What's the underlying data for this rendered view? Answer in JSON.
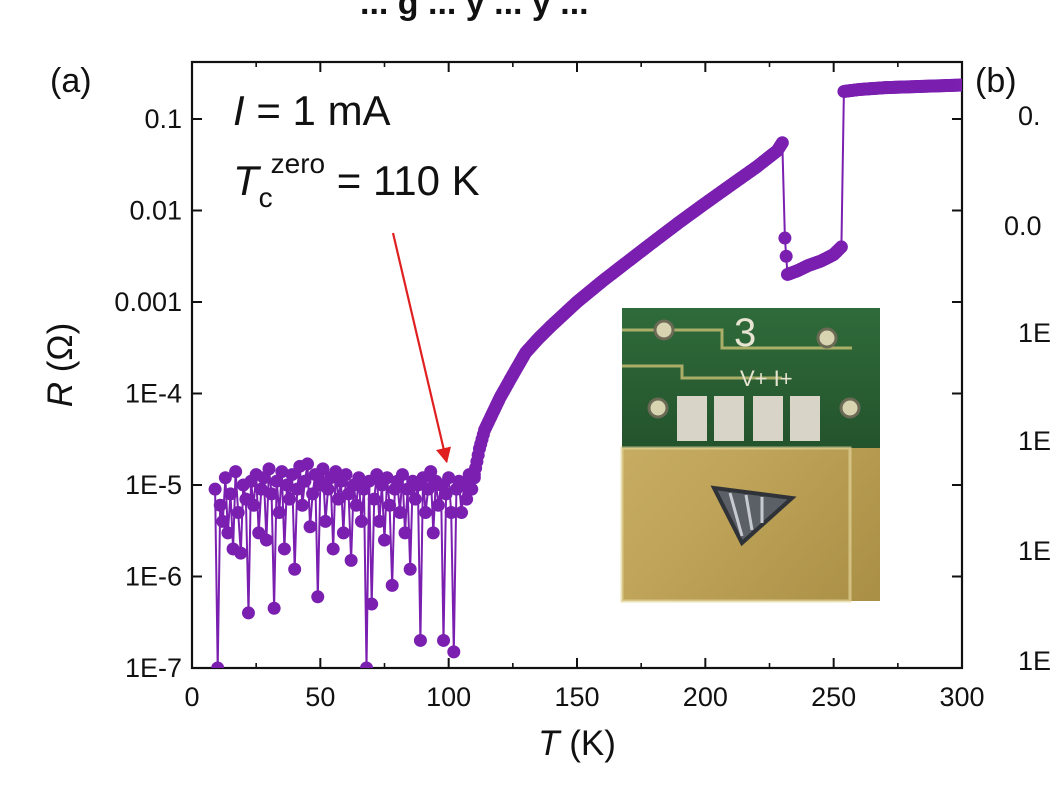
{
  "header_fragment": "... g ... y ... y ...",
  "chart_data": {
    "type": "scatter",
    "panel_label": "(a)",
    "xlabel": {
      "symbol": "T",
      "unit": "(K)"
    },
    "ylabel": {
      "symbol": "R",
      "unit": "(Ω)"
    },
    "xlim": [
      0,
      300
    ],
    "ylim": [
      1e-07,
      0.4
    ],
    "yscale": "log",
    "x_ticks": [
      {
        "value": 0,
        "label": "0"
      },
      {
        "value": 50,
        "label": "50"
      },
      {
        "value": 100,
        "label": "100"
      },
      {
        "value": 150,
        "label": "150"
      },
      {
        "value": 200,
        "label": "200"
      },
      {
        "value": 250,
        "label": "250"
      },
      {
        "value": 300,
        "label": "300"
      }
    ],
    "y_ticks": [
      {
        "value": 1e-07,
        "label": "1E-7"
      },
      {
        "value": 1e-06,
        "label": "1E-6"
      },
      {
        "value": 1e-05,
        "label": "1E-5"
      },
      {
        "value": 0.0001,
        "label": "1E-4"
      },
      {
        "value": 0.001,
        "label": "0.001"
      },
      {
        "value": 0.01,
        "label": "0.01"
      },
      {
        "value": 0.1,
        "label": "0.1"
      }
    ],
    "annotations": {
      "current": {
        "symbol": "I",
        "rest": " = 1 mA"
      },
      "tc": {
        "symbol": "T",
        "sub": "c",
        "sup": "zero",
        "rest": " = 110 K"
      },
      "arrow_points_to": {
        "x": 100,
        "y": 1.2e-05
      }
    },
    "series": [
      {
        "color": "#7a1fb0",
        "marker": "circle",
        "noise_points": [
          [
            9,
            9e-06
          ],
          [
            10,
            1e-07
          ],
          [
            11,
            6e-06
          ],
          [
            12,
            4e-06
          ],
          [
            13,
            1.2e-05
          ],
          [
            14,
            3e-06
          ],
          [
            15,
            8e-06
          ],
          [
            16,
            2e-06
          ],
          [
            17,
            1.4e-05
          ],
          [
            18,
            5e-06
          ],
          [
            19,
            1.8e-06
          ],
          [
            20,
            1e-05
          ],
          [
            21,
            7e-06
          ],
          [
            22,
            4e-07
          ],
          [
            23,
            1.1e-05
          ],
          [
            24,
            6e-06
          ],
          [
            25,
            1.3e-05
          ],
          [
            26,
            3e-06
          ],
          [
            27,
            9e-06
          ],
          [
            28,
            1.2e-05
          ],
          [
            29,
            2.5e-06
          ],
          [
            30,
            1.5e-05
          ],
          [
            31,
            8e-06
          ],
          [
            32,
            4.5e-07
          ],
          [
            33,
            1.1e-05
          ],
          [
            34,
            5e-06
          ],
          [
            35,
            1.4e-05
          ],
          [
            36,
            2e-06
          ],
          [
            37,
            1e-05
          ],
          [
            38,
            7e-06
          ],
          [
            39,
            1.3e-05
          ],
          [
            40,
            1.2e-06
          ],
          [
            41,
            9e-06
          ],
          [
            42,
            1.6e-05
          ],
          [
            43,
            6e-06
          ],
          [
            44,
            1.1e-05
          ],
          [
            45,
            1.7e-05
          ],
          [
            46,
            3.5e-06
          ],
          [
            47,
            8e-06
          ],
          [
            48,
            1.3e-05
          ],
          [
            49,
            6e-07
          ],
          [
            50,
            1e-05
          ],
          [
            51,
            1.5e-05
          ],
          [
            52,
            4e-06
          ],
          [
            53,
            9e-06
          ],
          [
            54,
            1.2e-05
          ],
          [
            55,
            2e-06
          ],
          [
            56,
            1.4e-05
          ],
          [
            57,
            7e-06
          ],
          [
            58,
            1.1e-05
          ],
          [
            59,
            3e-06
          ],
          [
            60,
            1.3e-05
          ],
          [
            61,
            8e-06
          ],
          [
            62,
            1.5e-06
          ],
          [
            63,
            1e-05
          ],
          [
            64,
            6e-06
          ],
          [
            65,
            1.2e-05
          ],
          [
            66,
            4e-06
          ],
          [
            67,
            9e-06
          ],
          [
            68,
            1e-07
          ],
          [
            69,
            1.1e-05
          ],
          [
            70,
            5e-07
          ],
          [
            71,
            7e-06
          ],
          [
            72,
            1.3e-05
          ],
          [
            73,
            4e-06
          ],
          [
            74,
            1e-05
          ],
          [
            75,
            2.5e-06
          ],
          [
            76,
            1.2e-05
          ],
          [
            77,
            6e-06
          ],
          [
            78,
            8e-07
          ],
          [
            79,
            9e-06
          ],
          [
            80,
            1.1e-05
          ],
          [
            81,
            5e-06
          ],
          [
            82,
            1.3e-05
          ],
          [
            83,
            3e-06
          ],
          [
            84,
            9e-06
          ],
          [
            85,
            1.2e-06
          ],
          [
            86,
            1.1e-05
          ],
          [
            87,
            7e-06
          ],
          [
            88,
            1e-05
          ],
          [
            89,
            2e-07
          ],
          [
            90,
            1.2e-05
          ],
          [
            91,
            5e-06
          ],
          [
            92,
            9e-06
          ],
          [
            93,
            1.4e-05
          ],
          [
            94,
            3e-06
          ],
          [
            95,
            1.1e-05
          ],
          [
            96,
            6e-06
          ],
          [
            97,
            1e-05
          ],
          [
            98,
            2e-07
          ],
          [
            99,
            8e-06
          ],
          [
            100,
            1.2e-05
          ],
          [
            101,
            5e-06
          ],
          [
            102,
            1.5e-07
          ],
          [
            103,
            9e-06
          ],
          [
            104,
            1.1e-05
          ],
          [
            105,
            5e-06
          ],
          [
            106,
            1e-05
          ],
          [
            107,
            7e-06
          ],
          [
            108,
            1.3e-05
          ],
          [
            109,
            9e-06
          ],
          [
            110,
            1.2e-05
          ]
        ],
        "curve_points": [
          [
            110,
            1.3e-05
          ],
          [
            112,
            2.5e-05
          ],
          [
            114,
            4e-05
          ],
          [
            117,
            6e-05
          ],
          [
            120,
            9e-05
          ],
          [
            125,
            0.00016
          ],
          [
            130,
            0.00028
          ],
          [
            135,
            0.0004
          ],
          [
            140,
            0.00055
          ],
          [
            150,
            0.001
          ],
          [
            160,
            0.0017
          ],
          [
            170,
            0.0028
          ],
          [
            180,
            0.0046
          ],
          [
            190,
            0.0075
          ],
          [
            200,
            0.012
          ],
          [
            210,
            0.019
          ],
          [
            220,
            0.03
          ],
          [
            228,
            0.045
          ],
          [
            230,
            0.055
          ],
          [
            231,
            0.005
          ],
          [
            232,
            0.002
          ],
          [
            236,
            0.0022
          ],
          [
            240,
            0.0025
          ],
          [
            245,
            0.0028
          ],
          [
            250,
            0.0033
          ],
          [
            253,
            0.004
          ],
          [
            254,
            0.2
          ],
          [
            260,
            0.21
          ],
          [
            270,
            0.22
          ],
          [
            280,
            0.225
          ],
          [
            290,
            0.23
          ],
          [
            300,
            0.235
          ]
        ]
      }
    ]
  },
  "inset": {
    "image": "device-photo",
    "label_digit": "3",
    "label_pins": "V+ I+"
  },
  "next_panel": {
    "panel_label": "(b)",
    "partial_tick_labels": [
      "0.",
      "0.0",
      "1E",
      "1E",
      "1E",
      "1E"
    ]
  }
}
